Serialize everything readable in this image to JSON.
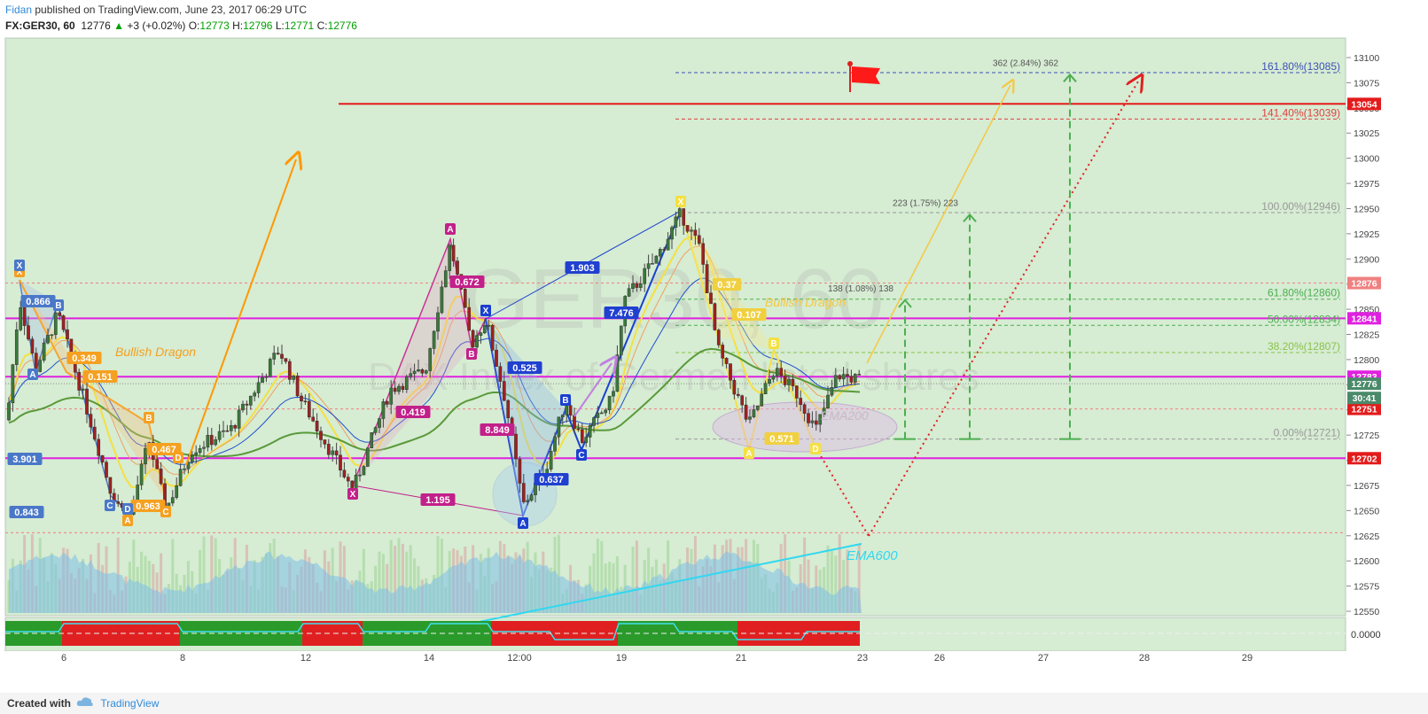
{
  "header": {
    "author": "Fidan",
    "published": "published on TradingView.com, June 23, 2017 06:29 UTC",
    "symbol": "FX:GER30, 60",
    "last": "12776",
    "change": "+3 (+0.02%)",
    "open_label": "O:",
    "open": "12773",
    "high_label": "H:",
    "high": "12796",
    "low_label": "L:",
    "low": "12771",
    "close_label": "C:",
    "close": "12776"
  },
  "footer": {
    "created": "Created with",
    "brand": "TradingView"
  },
  "watermark": {
    "symbol": "GER30, 60",
    "description": "DAX Index of German listed shares"
  },
  "chart_data": {
    "type": "candlestick",
    "y_range": [
      12525,
      13110
    ],
    "y_ticks": [
      12550,
      12575,
      12600,
      12625,
      12650,
      12675,
      12700,
      12725,
      12750,
      12775,
      12800,
      12825,
      12850,
      12875,
      12900,
      12925,
      12950,
      12975,
      13000,
      13025,
      13050,
      13075,
      13100
    ],
    "x_ticks": [
      "6",
      "8",
      "12",
      "14",
      "12:00",
      "19",
      "21",
      "23",
      "26",
      "27",
      "28",
      "29"
    ],
    "price_tags": [
      {
        "value": 13054,
        "label": "13054",
        "color": "#e31b1b"
      },
      {
        "value": 12876,
        "label": "12876",
        "color": "#f08080"
      },
      {
        "value": 12841,
        "label": "12841",
        "color": "#e020e0"
      },
      {
        "value": 12783,
        "label": "12783",
        "color": "#e020e0"
      },
      {
        "value": 12776,
        "label": "12776",
        "color": "#4a8a6a"
      },
      {
        "value": 12751,
        "label": "12751",
        "color": "#e31b1b"
      },
      {
        "value": 12702,
        "label": "12702",
        "color": "#e31b1b"
      }
    ],
    "countdown": "30:41",
    "fib_levels": [
      {
        "label": "161.80%(13085)",
        "value": 13085,
        "color": "#3f51b5"
      },
      {
        "label": "141.40%(13039)",
        "value": 13039,
        "color": "#e04040"
      },
      {
        "label": "100.00%(12946)",
        "value": 12946,
        "color": "#999999"
      },
      {
        "label": "61.80%(12860)",
        "value": 12860,
        "color": "#4caf50"
      },
      {
        "label": "50.00%(12834)",
        "value": 12834,
        "color": "#4caf50"
      },
      {
        "label": "38.20%(12807)",
        "value": 12807,
        "color": "#8bc34a"
      },
      {
        "label": "0.00%(12721)",
        "value": 12721,
        "color": "#999999"
      }
    ],
    "projections": [
      {
        "label": "362 (2.84%) 362",
        "from": 12721,
        "to": 13083
      },
      {
        "label": "223 (1.75%) 223",
        "from": 12721,
        "to": 12944
      },
      {
        "label": "138 (1.08%) 138",
        "from": 12721,
        "to": 12859
      }
    ],
    "annotations": {
      "bullish_dragon": "Bullish Dragon",
      "ema200": "EMA200",
      "ema600": "EMA600"
    },
    "pattern_labels": [
      {
        "text": "0.866",
        "bg": "#4a78c8"
      },
      {
        "text": "3.901",
        "bg": "#4a78c8"
      },
      {
        "text": "0.843",
        "bg": "#4a78c8"
      },
      {
        "text": "0.349",
        "bg": "#f5a020"
      },
      {
        "text": "0.151",
        "bg": "#f5a020"
      },
      {
        "text": "0.467",
        "bg": "#f5a020"
      },
      {
        "text": "0.963",
        "bg": "#f5a020"
      },
      {
        "text": "0.672",
        "bg": "#c2208a"
      },
      {
        "text": "0.419",
        "bg": "#c2208a"
      },
      {
        "text": "8.849",
        "bg": "#c2208a"
      },
      {
        "text": "1.195",
        "bg": "#c2208a"
      },
      {
        "text": "1.903",
        "bg": "#2040d0"
      },
      {
        "text": "0.525",
        "bg": "#2040d0"
      },
      {
        "text": "7.476",
        "bg": "#2040d0"
      },
      {
        "text": "0.637",
        "bg": "#2040d0"
      },
      {
        "text": "0.37",
        "bg": "#f0d040"
      },
      {
        "text": "0.107",
        "bg": "#f0d040"
      },
      {
        "text": "0.571",
        "bg": "#f0d040"
      }
    ],
    "point_labels": [
      "X",
      "A",
      "B",
      "C",
      "D",
      "X",
      "A",
      "B",
      "C",
      "D",
      "X",
      "A",
      "B",
      "C",
      "D",
      "X",
      "A",
      "B",
      "C",
      "D",
      "X",
      "A",
      "B",
      "C",
      "D"
    ],
    "oscillator_value": "0.0000"
  }
}
